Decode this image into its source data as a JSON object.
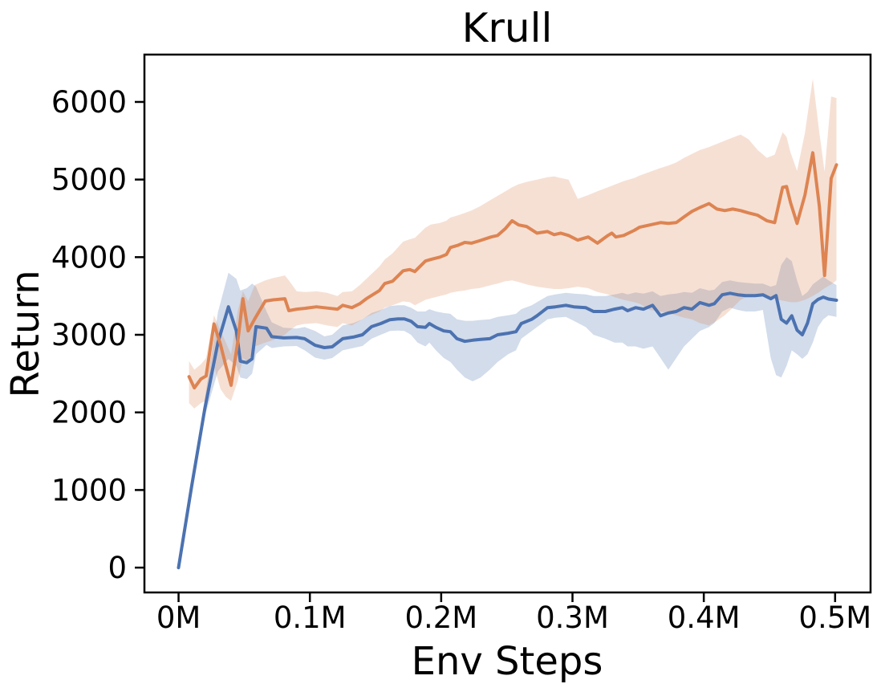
{
  "title": "Krull",
  "axes": {
    "xlabel": "Env Steps",
    "ylabel": "Return",
    "xlim_m": [
      -0.026,
      0.527
    ],
    "ylim": [
      -320,
      6610
    ],
    "xticks": [
      {
        "v": 0.0,
        "label": "0M"
      },
      {
        "v": 0.1,
        "label": "0.1M"
      },
      {
        "v": 0.2,
        "label": "0.2M"
      },
      {
        "v": 0.3,
        "label": "0.3M"
      },
      {
        "v": 0.4,
        "label": "0.4M"
      },
      {
        "v": 0.5,
        "label": "0.5M"
      }
    ],
    "yticks": [
      {
        "v": 0,
        "label": "0"
      },
      {
        "v": 1000,
        "label": "1000"
      },
      {
        "v": 2000,
        "label": "2000"
      },
      {
        "v": 3000,
        "label": "3000"
      },
      {
        "v": 4000,
        "label": "4000"
      },
      {
        "v": 5000,
        "label": "5000"
      },
      {
        "v": 6000,
        "label": "6000"
      }
    ]
  },
  "chart_data": {
    "type": "line",
    "title": "Krull",
    "xlabel": "Env Steps",
    "ylabel": "Return",
    "x_units": "millions of environment steps",
    "grid": false,
    "legend": "none",
    "xlim": [
      -0.026,
      0.527
    ],
    "ylim": [
      -320,
      6610
    ],
    "series": [
      {
        "name": "blue-curve",
        "color": "#4C72B0",
        "band_opacity": 0.25,
        "points_format": [
          "x_M",
          "mean_return",
          "band_lower",
          "band_upper"
        ],
        "points": [
          [
            0.0,
            0,
            -40,
            60
          ],
          [
            0.01,
            1050,
            960,
            1150
          ],
          [
            0.02,
            2050,
            1950,
            2180
          ],
          [
            0.03,
            2900,
            2530,
            3290
          ],
          [
            0.038,
            3360,
            2690,
            3800
          ],
          [
            0.044,
            3050,
            2600,
            3720
          ],
          [
            0.047,
            2660,
            2450,
            3570
          ],
          [
            0.052,
            2640,
            2430,
            3600
          ],
          [
            0.056,
            2690,
            2500,
            3660
          ],
          [
            0.059,
            3105,
            2750,
            3620
          ],
          [
            0.067,
            3085,
            2870,
            3300
          ],
          [
            0.071,
            2975,
            2830,
            3160
          ],
          [
            0.08,
            2960,
            2850,
            3090
          ],
          [
            0.09,
            2965,
            2855,
            3080
          ],
          [
            0.096,
            2950,
            2800,
            3100
          ],
          [
            0.104,
            2865,
            2705,
            3050
          ],
          [
            0.111,
            2835,
            2680,
            2980
          ],
          [
            0.117,
            2845,
            2700,
            3000
          ],
          [
            0.125,
            2950,
            2800,
            3120
          ],
          [
            0.133,
            2970,
            2830,
            3150
          ],
          [
            0.14,
            3000,
            2855,
            3200
          ],
          [
            0.147,
            3105,
            2950,
            3280
          ],
          [
            0.154,
            3145,
            3000,
            3320
          ],
          [
            0.161,
            3195,
            3050,
            3370
          ],
          [
            0.167,
            3205,
            3055,
            3380
          ],
          [
            0.172,
            3205,
            3050,
            3380
          ],
          [
            0.177,
            3175,
            3000,
            3350
          ],
          [
            0.182,
            3105,
            2900,
            3300
          ],
          [
            0.188,
            3095,
            2850,
            3300
          ],
          [
            0.191,
            3145,
            2900,
            3330
          ],
          [
            0.196,
            3095,
            2800,
            3300
          ],
          [
            0.202,
            3050,
            2700,
            3280
          ],
          [
            0.207,
            3040,
            2650,
            3270
          ],
          [
            0.212,
            2950,
            2550,
            3200
          ],
          [
            0.218,
            2915,
            2450,
            3180
          ],
          [
            0.224,
            2930,
            2400,
            3180
          ],
          [
            0.23,
            2940,
            2450,
            3190
          ],
          [
            0.237,
            2950,
            2550,
            3200
          ],
          [
            0.243,
            3000,
            2650,
            3230
          ],
          [
            0.251,
            3020,
            2750,
            3250
          ],
          [
            0.257,
            3040,
            2800,
            3270
          ],
          [
            0.261,
            3145,
            2950,
            3330
          ],
          [
            0.269,
            3200,
            3050,
            3380
          ],
          [
            0.273,
            3245,
            3100,
            3420
          ],
          [
            0.281,
            3350,
            3200,
            3500
          ],
          [
            0.287,
            3360,
            3220,
            3520
          ],
          [
            0.295,
            3380,
            3230,
            3540
          ],
          [
            0.301,
            3360,
            3180,
            3530
          ],
          [
            0.31,
            3350,
            3100,
            3520
          ],
          [
            0.316,
            3300,
            3000,
            3500
          ],
          [
            0.325,
            3300,
            2950,
            3500
          ],
          [
            0.332,
            3330,
            2900,
            3520
          ],
          [
            0.338,
            3350,
            2900,
            3540
          ],
          [
            0.342,
            3310,
            2850,
            3520
          ],
          [
            0.348,
            3350,
            2850,
            3545
          ],
          [
            0.354,
            3330,
            2820,
            3530
          ],
          [
            0.361,
            3380,
            2850,
            3560
          ],
          [
            0.367,
            3245,
            2700,
            3500
          ],
          [
            0.373,
            3280,
            2550,
            3520
          ],
          [
            0.379,
            3300,
            2700,
            3530
          ],
          [
            0.385,
            3350,
            2850,
            3550
          ],
          [
            0.391,
            3330,
            2950,
            3540
          ],
          [
            0.397,
            3415,
            3050,
            3600
          ],
          [
            0.404,
            3380,
            3100,
            3570
          ],
          [
            0.408,
            3400,
            3150,
            3580
          ],
          [
            0.414,
            3515,
            3300,
            3680
          ],
          [
            0.42,
            3535,
            3350,
            3700
          ],
          [
            0.426,
            3515,
            3320,
            3680
          ],
          [
            0.432,
            3505,
            3300,
            3670
          ],
          [
            0.439,
            3505,
            3300,
            3660
          ],
          [
            0.445,
            3515,
            3320,
            3660
          ],
          [
            0.451,
            3465,
            2700,
            3620
          ],
          [
            0.455,
            3505,
            2480,
            3640
          ],
          [
            0.459,
            3200,
            2450,
            3900
          ],
          [
            0.463,
            3150,
            2600,
            4000
          ],
          [
            0.467,
            3245,
            2800,
            3950
          ],
          [
            0.471,
            3060,
            2750,
            3700
          ],
          [
            0.475,
            3000,
            2690,
            3500
          ],
          [
            0.479,
            3150,
            2750,
            3550
          ],
          [
            0.483,
            3400,
            2900,
            3650
          ],
          [
            0.487,
            3455,
            3100,
            3700
          ],
          [
            0.491,
            3485,
            3200,
            3750
          ],
          [
            0.495,
            3460,
            3250,
            3700
          ],
          [
            0.501,
            3445,
            3230,
            3640
          ]
        ]
      },
      {
        "name": "orange-curve",
        "color": "#DD8452",
        "band_opacity": 0.25,
        "points_format": [
          "x_M",
          "mean_return",
          "band_lower",
          "band_upper"
        ],
        "points": [
          [
            0.008,
            2460,
            2120,
            2660
          ],
          [
            0.012,
            2315,
            2050,
            2550
          ],
          [
            0.017,
            2430,
            2120,
            2620
          ],
          [
            0.021,
            2470,
            2150,
            2700
          ],
          [
            0.027,
            3140,
            2600,
            3250
          ],
          [
            0.032,
            2870,
            2300,
            3050
          ],
          [
            0.036,
            2600,
            2200,
            2900
          ],
          [
            0.04,
            2350,
            2150,
            2750
          ],
          [
            0.045,
            2900,
            2400,
            3300
          ],
          [
            0.049,
            3465,
            2700,
            3560
          ],
          [
            0.053,
            3050,
            2650,
            3430
          ],
          [
            0.058,
            3205,
            2850,
            3640
          ],
          [
            0.066,
            3435,
            2900,
            3700
          ],
          [
            0.072,
            3450,
            2930,
            3730
          ],
          [
            0.081,
            3465,
            3000,
            3765
          ],
          [
            0.084,
            3310,
            3050,
            3700
          ],
          [
            0.09,
            3330,
            3120,
            3560
          ],
          [
            0.096,
            3340,
            3140,
            3550
          ],
          [
            0.105,
            3360,
            3150,
            3560
          ],
          [
            0.113,
            3345,
            3120,
            3540
          ],
          [
            0.121,
            3330,
            3100,
            3500
          ],
          [
            0.125,
            3380,
            3150,
            3550
          ],
          [
            0.132,
            3350,
            3120,
            3560
          ],
          [
            0.138,
            3400,
            3180,
            3640
          ],
          [
            0.143,
            3465,
            3230,
            3720
          ],
          [
            0.153,
            3570,
            3300,
            3880
          ],
          [
            0.157,
            3660,
            3350,
            3970
          ],
          [
            0.163,
            3690,
            3380,
            4050
          ],
          [
            0.171,
            3825,
            3430,
            4200
          ],
          [
            0.176,
            3840,
            3420,
            4230
          ],
          [
            0.18,
            3815,
            3380,
            4250
          ],
          [
            0.188,
            3950,
            3450,
            4380
          ],
          [
            0.192,
            3970,
            3470,
            4420
          ],
          [
            0.199,
            4000,
            3500,
            4440
          ],
          [
            0.204,
            4035,
            3520,
            4470
          ],
          [
            0.207,
            4125,
            3540,
            4510
          ],
          [
            0.213,
            4155,
            3560,
            4540
          ],
          [
            0.218,
            4190,
            3570,
            4570
          ],
          [
            0.223,
            4180,
            3590,
            4600
          ],
          [
            0.229,
            4210,
            3600,
            4650
          ],
          [
            0.238,
            4260,
            3640,
            4740
          ],
          [
            0.243,
            4280,
            3660,
            4790
          ],
          [
            0.249,
            4370,
            3690,
            4850
          ],
          [
            0.254,
            4470,
            3700,
            4900
          ],
          [
            0.259,
            4415,
            3680,
            4940
          ],
          [
            0.265,
            4395,
            3650,
            4970
          ],
          [
            0.273,
            4310,
            3620,
            5000
          ],
          [
            0.281,
            4330,
            3600,
            5030
          ],
          [
            0.286,
            4290,
            3590,
            5040
          ],
          [
            0.291,
            4310,
            3590,
            5020
          ],
          [
            0.297,
            4280,
            3600,
            5000
          ],
          [
            0.304,
            4220,
            3620,
            4750
          ],
          [
            0.312,
            4260,
            3600,
            4800
          ],
          [
            0.319,
            4180,
            3550,
            4850
          ],
          [
            0.327,
            4280,
            3520,
            4900
          ],
          [
            0.33,
            4310,
            3500,
            4920
          ],
          [
            0.333,
            4260,
            3480,
            4940
          ],
          [
            0.339,
            4280,
            3450,
            4980
          ],
          [
            0.347,
            4345,
            3420,
            5020
          ],
          [
            0.351,
            4385,
            3400,
            5050
          ],
          [
            0.359,
            4415,
            3320,
            5100
          ],
          [
            0.367,
            4445,
            3300,
            5150
          ],
          [
            0.373,
            4435,
            3280,
            5180
          ],
          [
            0.379,
            4445,
            3250,
            5220
          ],
          [
            0.385,
            4520,
            3220,
            5280
          ],
          [
            0.391,
            4590,
            3200,
            5330
          ],
          [
            0.397,
            4640,
            3150,
            5380
          ],
          [
            0.404,
            4690,
            3120,
            5420
          ],
          [
            0.41,
            4620,
            3180,
            5460
          ],
          [
            0.416,
            4600,
            3250,
            5500
          ],
          [
            0.422,
            4620,
            3350,
            5540
          ],
          [
            0.428,
            4600,
            3450,
            5580
          ],
          [
            0.434,
            4570,
            3500,
            5520
          ],
          [
            0.441,
            4540,
            3520,
            5380
          ],
          [
            0.448,
            4470,
            3490,
            5280
          ],
          [
            0.454,
            4445,
            3460,
            5320
          ],
          [
            0.46,
            4900,
            3440,
            5610
          ],
          [
            0.463,
            4910,
            3430,
            5550
          ],
          [
            0.466,
            4705,
            3420,
            5350
          ],
          [
            0.471,
            4435,
            3420,
            5110
          ],
          [
            0.477,
            4800,
            3450,
            5600
          ],
          [
            0.483,
            5345,
            3500,
            6300
          ],
          [
            0.488,
            4655,
            3550,
            5600
          ],
          [
            0.492,
            3765,
            3600,
            5100
          ],
          [
            0.497,
            5015,
            3650,
            6070
          ],
          [
            0.501,
            5190,
            3700,
            6050
          ]
        ]
      }
    ]
  }
}
